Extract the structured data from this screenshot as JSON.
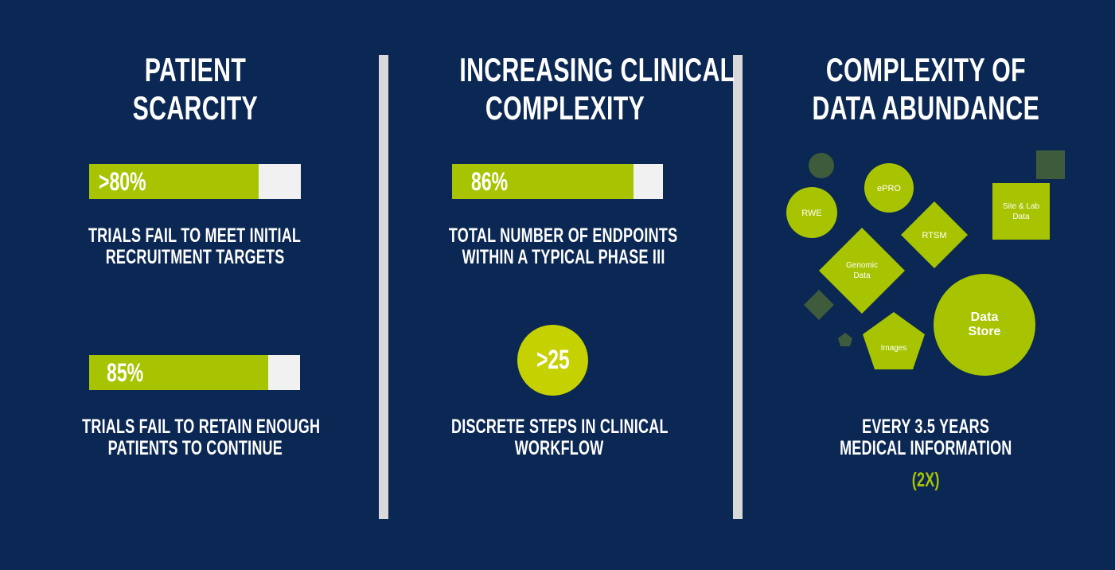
{
  "colors": {
    "background": "#0b2753",
    "accent_green": "#a8c400",
    "bright_green": "#c5d100",
    "dark_green": "#3e5b3c",
    "bar_track": "#f1f1f1",
    "divider": "#d9d9d9"
  },
  "columns": [
    {
      "title_lines": [
        "PATIENT",
        "SCARCITY"
      ],
      "stats": [
        {
          "value_label": ">80%",
          "fill_fraction": 0.8,
          "caption_lines": [
            "TRIALS FAIL TO MEET INITIAL",
            "RECRUITMENT TARGETS"
          ]
        },
        {
          "value_label": "85%",
          "fill_fraction": 0.85,
          "caption_lines": [
            "TRIALS FAIL TO RETAIN ENOUGH",
            "PATIENTS TO CONTINUE"
          ]
        }
      ]
    },
    {
      "title_lines": [
        "INCREASING CLINICAL",
        "COMPLEXITY"
      ],
      "stats": [
        {
          "value_label": "86%",
          "fill_fraction": 0.86,
          "caption_lines": [
            "TOTAL NUMBER OF ENDPOINTS",
            "WITHIN A TYPICAL PHASE III"
          ]
        },
        {
          "value_label": ">25",
          "caption_lines": [
            "DISCRETE STEPS IN CLINICAL",
            "WORKFLOW"
          ]
        }
      ]
    },
    {
      "title_lines": [
        "COMPLEXITY OF",
        "DATA ABUNDANCE"
      ],
      "shapes": {
        "rwe": "RWE",
        "epro": "ePRO",
        "site_lab": [
          "Site & Lab",
          "Data"
        ],
        "rtsm": "RTSM",
        "genomic": [
          "Genomic",
          "Data"
        ],
        "data_store": [
          "Data",
          "Store"
        ],
        "images": "Images"
      },
      "caption_lines": [
        "EVERY 3.5 YEARS",
        "MEDICAL INFORMATION"
      ],
      "highlight": "(2X)"
    }
  ]
}
